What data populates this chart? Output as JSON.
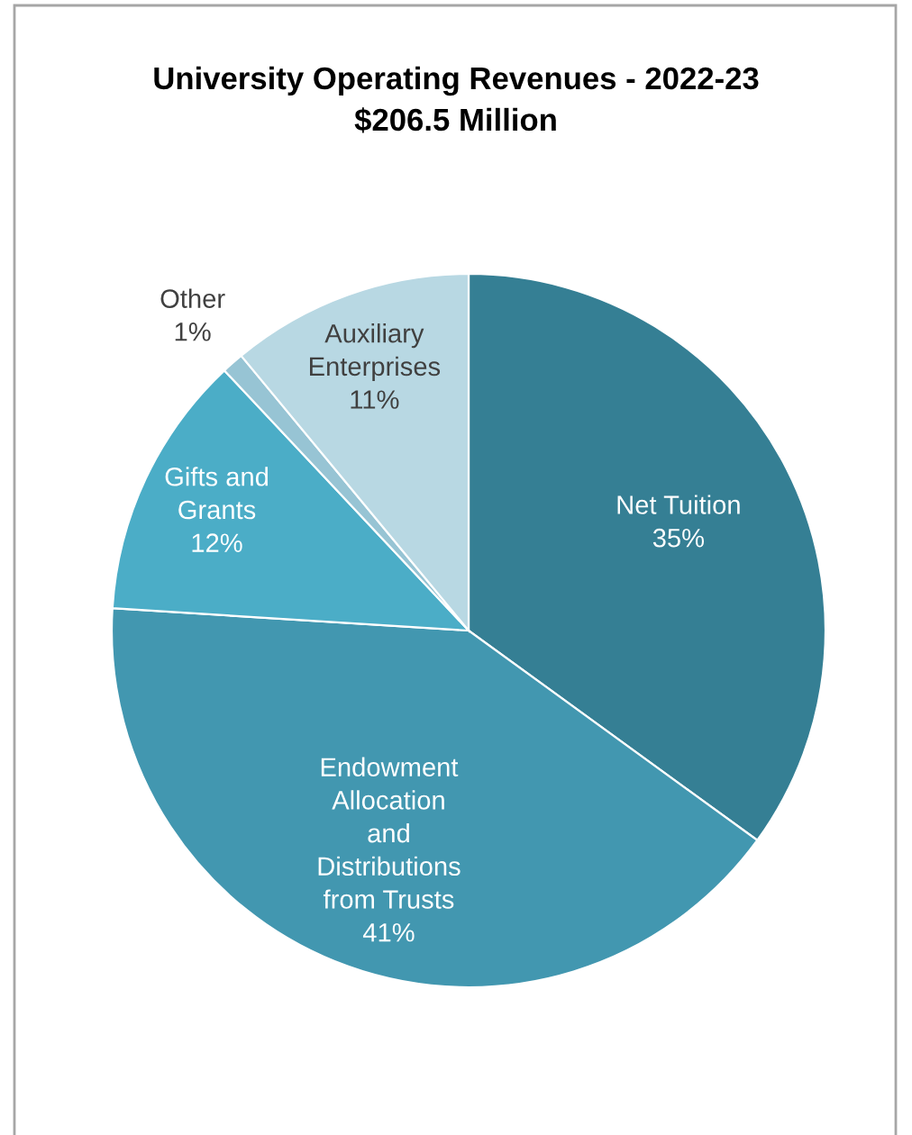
{
  "chart_data": {
    "type": "pie",
    "title": "University Operating Revenues - 2022-23",
    "subtitle": "$206.5 Million",
    "categories": [
      "Net Tuition",
      "Endowment\nAllocation\nand\nDistributions\nfrom Trusts",
      "Gifts and\nGrants",
      "Other",
      "Auxiliary\nEnterprises"
    ],
    "values": [
      35,
      41,
      12,
      1,
      11
    ],
    "value_labels": [
      "35%",
      "41%",
      "12%",
      "1%",
      "11%"
    ],
    "colors": [
      "#357f94",
      "#4297b0",
      "#4badc7",
      "#97c4d4",
      "#b8d8e3"
    ],
    "legend": false
  }
}
